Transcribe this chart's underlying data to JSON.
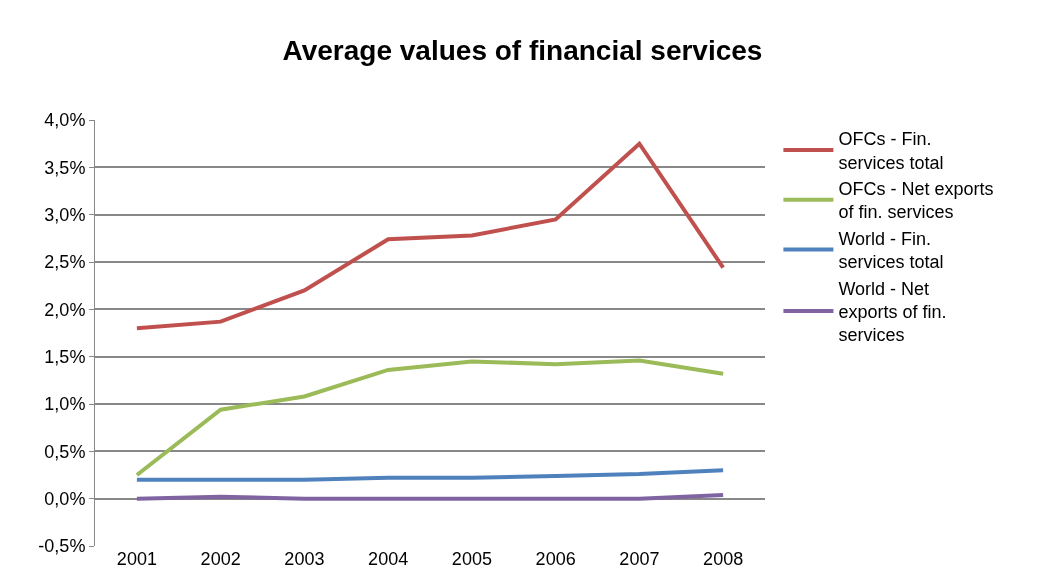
{
  "chart_data": {
    "type": "line",
    "title": "Average values of financial services",
    "categories": [
      "2001",
      "2002",
      "2003",
      "2004",
      "2005",
      "2006",
      "2007",
      "2008"
    ],
    "series": [
      {
        "name": "OFCs - Fin. services total",
        "color": "#c0504d",
        "values": [
          1.8,
          1.87,
          2.2,
          2.74,
          2.78,
          2.95,
          3.75,
          2.44
        ]
      },
      {
        "name": "OFCs - Net exports of fin. services",
        "color": "#9bbb59",
        "values": [
          0.25,
          0.94,
          1.08,
          1.36,
          1.45,
          1.42,
          1.46,
          1.32
        ]
      },
      {
        "name": "World - Fin. services total",
        "color": "#4f81bd",
        "values": [
          0.2,
          0.2,
          0.2,
          0.22,
          0.22,
          0.24,
          0.26,
          0.3
        ]
      },
      {
        "name": "World - Net exports of fin. services",
        "color": "#8064a2",
        "values": [
          0.0,
          0.02,
          0.0,
          0.0,
          0.0,
          0.0,
          0.0,
          0.04
        ]
      }
    ],
    "ylim": [
      -0.5,
      4.0
    ],
    "yticks": [
      {
        "value": -0.5,
        "label": "-0,5%"
      },
      {
        "value": 0,
        "label": "0,0%"
      },
      {
        "value": 0.5,
        "label": "0,5%"
      },
      {
        "value": 1.0,
        "label": "1,0%"
      },
      {
        "value": 1.5,
        "label": "1,5%"
      },
      {
        "value": 2.0,
        "label": "2,0%"
      },
      {
        "value": 2.5,
        "label": "2,5%"
      },
      {
        "value": 3.0,
        "label": "3,0%"
      },
      {
        "value": 3.5,
        "label": "3,5%"
      },
      {
        "value": 4.0,
        "label": "4,0%"
      }
    ],
    "grid": "y",
    "legend": "right",
    "marker": "none",
    "line_style": "solid"
  }
}
